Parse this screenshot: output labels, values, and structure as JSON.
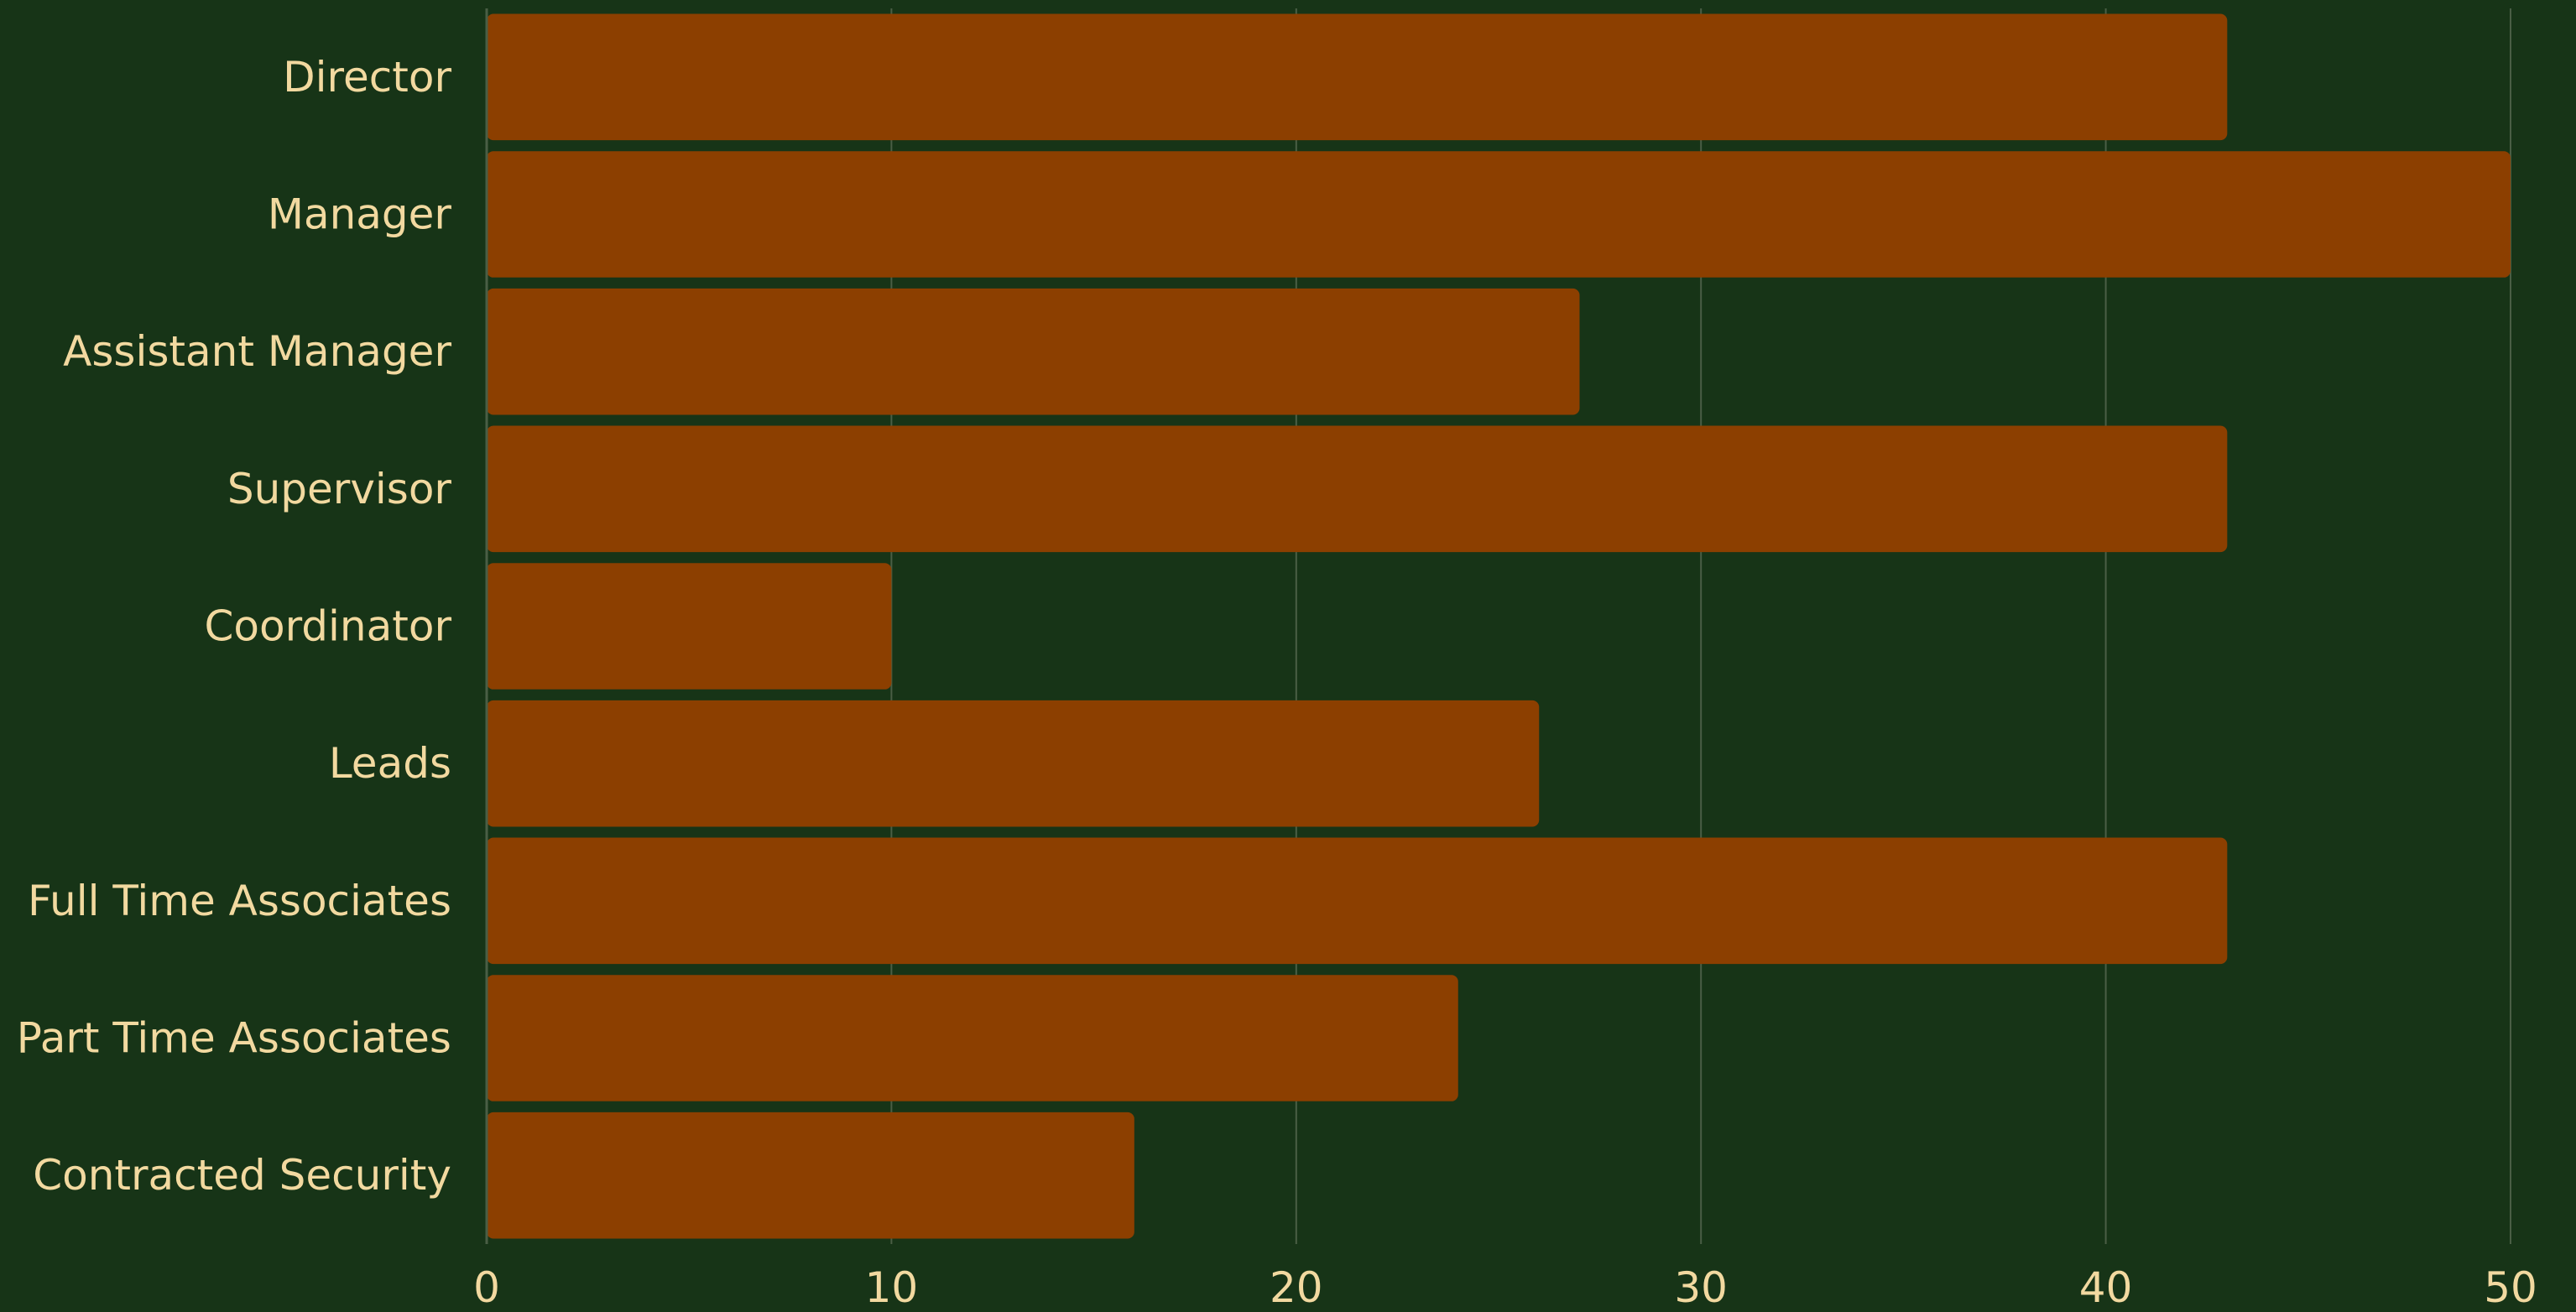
{
  "chart_data": {
    "type": "bar",
    "orientation": "horizontal",
    "categories": [
      "Director",
      "Manager",
      "Assistant Manager",
      "Supervisor",
      "Coordinator",
      "Leads",
      "Full Time Associates",
      "Part Time Associates",
      "Contracted Security"
    ],
    "values": [
      43,
      50,
      27,
      43,
      10,
      26,
      43,
      24,
      16
    ],
    "title": "",
    "xlabel": "",
    "ylabel": "",
    "xlim": [
      0,
      50
    ],
    "xticks": [
      0,
      10,
      20,
      30,
      40,
      50
    ],
    "grid": "vertical",
    "legend": "none",
    "colors": {
      "background": "#173417",
      "bar": "#8c3f00",
      "text": "#f2d9a0",
      "grid": "#4a5e45"
    }
  }
}
